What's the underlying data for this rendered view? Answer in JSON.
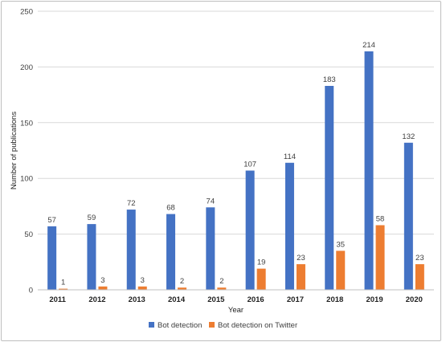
{
  "chart_data": {
    "type": "bar",
    "title": "",
    "xlabel": "Year",
    "ylabel": "Number of publications",
    "categories": [
      "2011",
      "2012",
      "2013",
      "2014",
      "2015",
      "2016",
      "2017",
      "2018",
      "2019",
      "2020"
    ],
    "series": [
      {
        "name": "Bot detection",
        "color": "#4472C4",
        "values": [
          57,
          59,
          72,
          68,
          74,
          107,
          114,
          183,
          214,
          132
        ]
      },
      {
        "name": "Bot detection on Twitter",
        "color": "#ED7D31",
        "values": [
          1,
          3,
          3,
          2,
          2,
          19,
          23,
          35,
          58,
          23
        ]
      }
    ],
    "ylim": [
      0,
      250
    ],
    "yticks": [
      0,
      50,
      100,
      150,
      200,
      250
    ],
    "grid": true,
    "legend_position": "bottom",
    "data_labels": true
  }
}
